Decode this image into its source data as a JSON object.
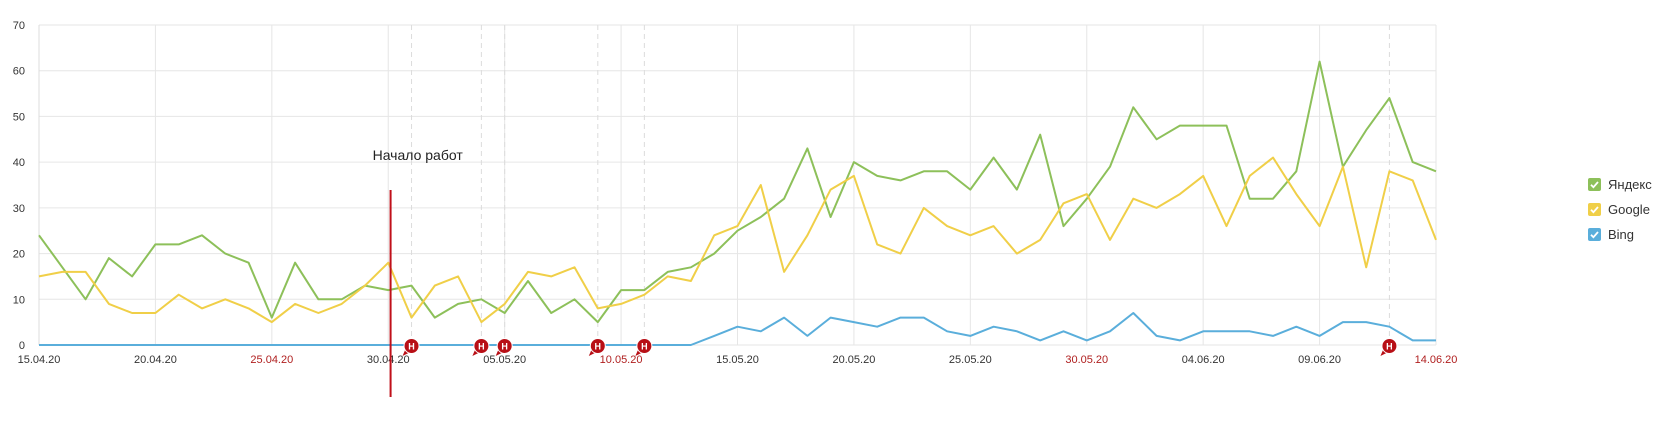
{
  "chart_data": {
    "type": "line",
    "x_start": "15.04.20",
    "x": [
      "15.04.20",
      "16.04.20",
      "17.04.20",
      "18.04.20",
      "19.04.20",
      "20.04.20",
      "21.04.20",
      "22.04.20",
      "23.04.20",
      "24.04.20",
      "25.04.20",
      "26.04.20",
      "27.04.20",
      "28.04.20",
      "29.04.20",
      "30.04.20",
      "01.05.20",
      "02.05.20",
      "03.05.20",
      "04.05.20",
      "05.05.20",
      "06.05.20",
      "07.05.20",
      "08.05.20",
      "09.05.20",
      "10.05.20",
      "11.05.20",
      "12.05.20",
      "13.05.20",
      "14.05.20",
      "15.05.20",
      "16.05.20",
      "17.05.20",
      "18.05.20",
      "19.05.20",
      "20.05.20",
      "21.05.20",
      "22.05.20",
      "23.05.20",
      "24.05.20",
      "25.05.20",
      "26.05.20",
      "27.05.20",
      "28.05.20",
      "29.05.20",
      "30.05.20",
      "31.05.20",
      "01.06.20",
      "02.06.20",
      "03.06.20",
      "04.06.20",
      "05.06.20",
      "06.06.20",
      "07.06.20",
      "08.06.20",
      "09.06.20",
      "10.06.20",
      "11.06.20",
      "12.06.20",
      "13.06.20",
      "14.06.20"
    ],
    "ylim": [
      0,
      70
    ],
    "y_ticks": [
      0,
      10,
      20,
      30,
      40,
      50,
      60,
      70
    ],
    "x_tick_labels": [
      {
        "label": "15.04.20",
        "index": 0,
        "weekend": false
      },
      {
        "label": "20.04.20",
        "index": 5,
        "weekend": false
      },
      {
        "label": "25.04.20",
        "index": 10,
        "weekend": true
      },
      {
        "label": "30.04.20",
        "index": 15,
        "weekend": false
      },
      {
        "label": "05.05.20",
        "index": 20,
        "weekend": false
      },
      {
        "label": "10.05.20",
        "index": 25,
        "weekend": true
      },
      {
        "label": "15.05.20",
        "index": 30,
        "weekend": false
      },
      {
        "label": "20.05.20",
        "index": 35,
        "weekend": false
      },
      {
        "label": "25.05.20",
        "index": 40,
        "weekend": false
      },
      {
        "label": "30.05.20",
        "index": 45,
        "weekend": true
      },
      {
        "label": "04.06.20",
        "index": 50,
        "weekend": false
      },
      {
        "label": "09.06.20",
        "index": 55,
        "weekend": false
      },
      {
        "label": "14.06.20",
        "index": 60,
        "weekend": true
      }
    ],
    "series": [
      {
        "name": "Яндекс",
        "color": "#8dc05a",
        "values": [
          24,
          17,
          10,
          19,
          15,
          22,
          22,
          24,
          20,
          18,
          6,
          18,
          10,
          10,
          13,
          12,
          13,
          6,
          9,
          10,
          7,
          14,
          7,
          10,
          5,
          12,
          12,
          16,
          17,
          20,
          25,
          28,
          32,
          43,
          28,
          40,
          37,
          36,
          38,
          38,
          34,
          41,
          34,
          46,
          26,
          32,
          39,
          52,
          45,
          48,
          48,
          48,
          32,
          32,
          38,
          62,
          39,
          47,
          54,
          40,
          38
        ]
      },
      {
        "name": "Google",
        "color": "#f0cf48",
        "values": [
          15,
          16,
          16,
          9,
          7,
          7,
          11,
          8,
          10,
          8,
          5,
          9,
          7,
          9,
          13,
          18,
          6,
          13,
          15,
          5,
          9,
          16,
          15,
          17,
          8,
          9,
          11,
          15,
          14,
          24,
          26,
          35,
          16,
          24,
          34,
          37,
          22,
          20,
          30,
          26,
          24,
          26,
          20,
          23,
          31,
          33,
          23,
          32,
          30,
          33,
          37,
          26,
          37,
          41,
          33,
          26,
          39,
          17,
          38,
          36,
          23
        ]
      },
      {
        "name": "Bing",
        "color": "#5aaedb",
        "values": [
          0,
          0,
          0,
          0,
          0,
          0,
          0,
          0,
          0,
          0,
          0,
          0,
          0,
          0,
          0,
          0,
          0,
          0,
          0,
          0,
          0,
          0,
          0,
          0,
          0,
          0,
          0,
          0,
          0,
          2,
          4,
          3,
          6,
          2,
          6,
          5,
          4,
          6,
          6,
          3,
          2,
          4,
          3,
          1,
          3,
          1,
          3,
          7,
          2,
          1,
          3,
          3,
          3,
          2,
          4,
          2,
          5,
          5,
          4,
          1,
          1
        ]
      }
    ],
    "annotation": {
      "text": "Начало работ",
      "x_index": 15.1,
      "color": "#c0101a"
    },
    "event_markers": [
      {
        "label": "H",
        "x_index": 16
      },
      {
        "label": "H",
        "x_index": 19
      },
      {
        "label": "H",
        "x_index": 20
      },
      {
        "label": "H",
        "x_index": 24
      },
      {
        "label": "H",
        "x_index": 26
      },
      {
        "label": "H",
        "x_index": 58
      }
    ],
    "grid": true,
    "legend_position": "right",
    "colors": {
      "axis_text": "#333333",
      "weekend_text": "#b02020",
      "grid": "#e6e6e6",
      "marker": "#b80f16"
    }
  },
  "legend": {
    "items": [
      {
        "label": "Яндекс",
        "color": "#8dc05a",
        "checked": true
      },
      {
        "label": "Google",
        "color": "#f0cf48",
        "checked": true
      },
      {
        "label": "Bing",
        "color": "#5aaedb",
        "checked": true
      }
    ]
  }
}
